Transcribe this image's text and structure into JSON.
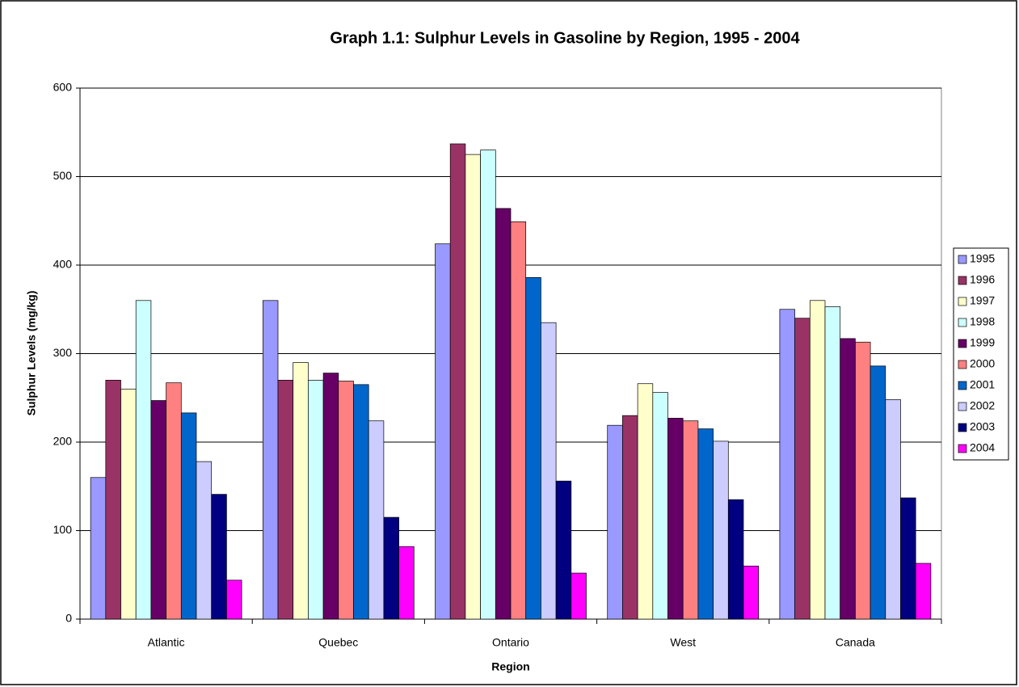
{
  "chart_data": {
    "type": "bar",
    "title": "Graph 1.1: Sulphur Levels in Gasoline by Region, 1995 - 2004",
    "x_label": "Region",
    "y_label": "Sulphur Levels (mg/kg)",
    "categories": [
      "Atlantic",
      "Quebec",
      "Ontario",
      "West",
      "Canada"
    ],
    "series": [
      {
        "name": "1995",
        "color": "#9999ff",
        "values": [
          160,
          360,
          424,
          219,
          350
        ]
      },
      {
        "name": "1996",
        "color": "#993366",
        "values": [
          270,
          270,
          537,
          230,
          340
        ]
      },
      {
        "name": "1997",
        "color": "#ffffcc",
        "values": [
          260,
          290,
          525,
          266,
          360
        ]
      },
      {
        "name": "1998",
        "color": "#ccffff",
        "values": [
          360,
          270,
          530,
          256,
          353
        ]
      },
      {
        "name": "1999",
        "color": "#660066",
        "values": [
          247,
          278,
          464,
          227,
          317
        ]
      },
      {
        "name": "2000",
        "color": "#ff8080",
        "values": [
          267,
          269,
          449,
          224,
          313
        ]
      },
      {
        "name": "2001",
        "color": "#0066cc",
        "values": [
          233,
          265,
          386,
          215,
          286
        ]
      },
      {
        "name": "2002",
        "color": "#ccccff",
        "values": [
          178,
          224,
          335,
          201,
          248
        ]
      },
      {
        "name": "2003",
        "color": "#000080",
        "values": [
          141,
          115,
          156,
          135,
          137
        ]
      },
      {
        "name": "2004",
        "color": "#ff00ff",
        "values": [
          44,
          82,
          52,
          60,
          63
        ]
      }
    ],
    "ylim": [
      0,
      600
    ],
    "yticks": [
      0,
      100,
      200,
      300,
      400,
      500,
      600
    ],
    "grid": true,
    "legend": "right"
  }
}
